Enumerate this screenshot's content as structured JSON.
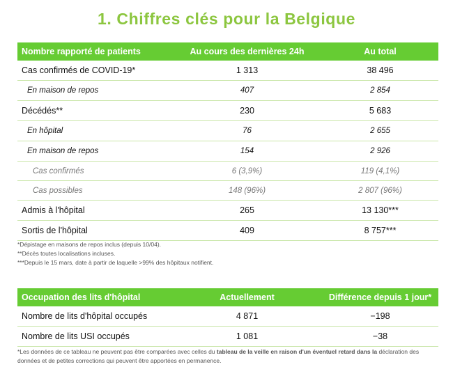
{
  "title": "1. Chiffres clés pour la Belgique",
  "patients_table": {
    "headers": [
      "Nombre rapporté de patients",
      "Au cours des dernières 24h",
      "Au total"
    ],
    "rows": [
      {
        "label": "Cas confirmés de COVID-19*",
        "last24h": "1 313",
        "total": "38 496"
      },
      {
        "label": "En maison de repos",
        "last24h": "407",
        "total": "2 854"
      },
      {
        "label": "Décédés**",
        "last24h": "230",
        "total": "5 683"
      },
      {
        "label": "En hôpital",
        "last24h": "76",
        "total": "2 655"
      },
      {
        "label": "En maison de repos",
        "last24h": "154",
        "total": "2 926"
      },
      {
        "label": "Cas confirmés",
        "last24h": "6 (3,9%)",
        "total": "119 (4,1%)"
      },
      {
        "label": "Cas possibles",
        "last24h": "148 (96%)",
        "total": "2 807 (96%)"
      },
      {
        "label": "Admis à l'hôpital",
        "last24h": "265",
        "total": "13 130***"
      },
      {
        "label": "Sortis de l'hôpital",
        "last24h": "409",
        "total": "8 757***"
      }
    ],
    "notes": [
      "*Dépistage en maisons de repos inclus (depuis 10/04).",
      "**Décès toutes localisations incluses.",
      "***Depuis le 15 mars, date à partir de laquelle >99% des hôpitaux notifient."
    ]
  },
  "beds_table": {
    "headers": [
      "Occupation des lits d'hôpital",
      "Actuellement",
      "Différence depuis 1 jour*"
    ],
    "rows": [
      {
        "label": "Nombre de lits d'hôpital occupés",
        "current": "4 871",
        "diff": "−198"
      },
      {
        "label": "Nombre de lits USI occupés",
        "current": "1 081",
        "diff": "−38"
      }
    ],
    "note_part1": "*Les données de ce tableau ne peuvent pas être comparées avec celles du ",
    "note_bold": "tableau de la veille en raison d'un éventuel retard dans la",
    "note_part2": " déclaration des données et de petites corrections qui peuvent être apportées en permanence."
  }
}
